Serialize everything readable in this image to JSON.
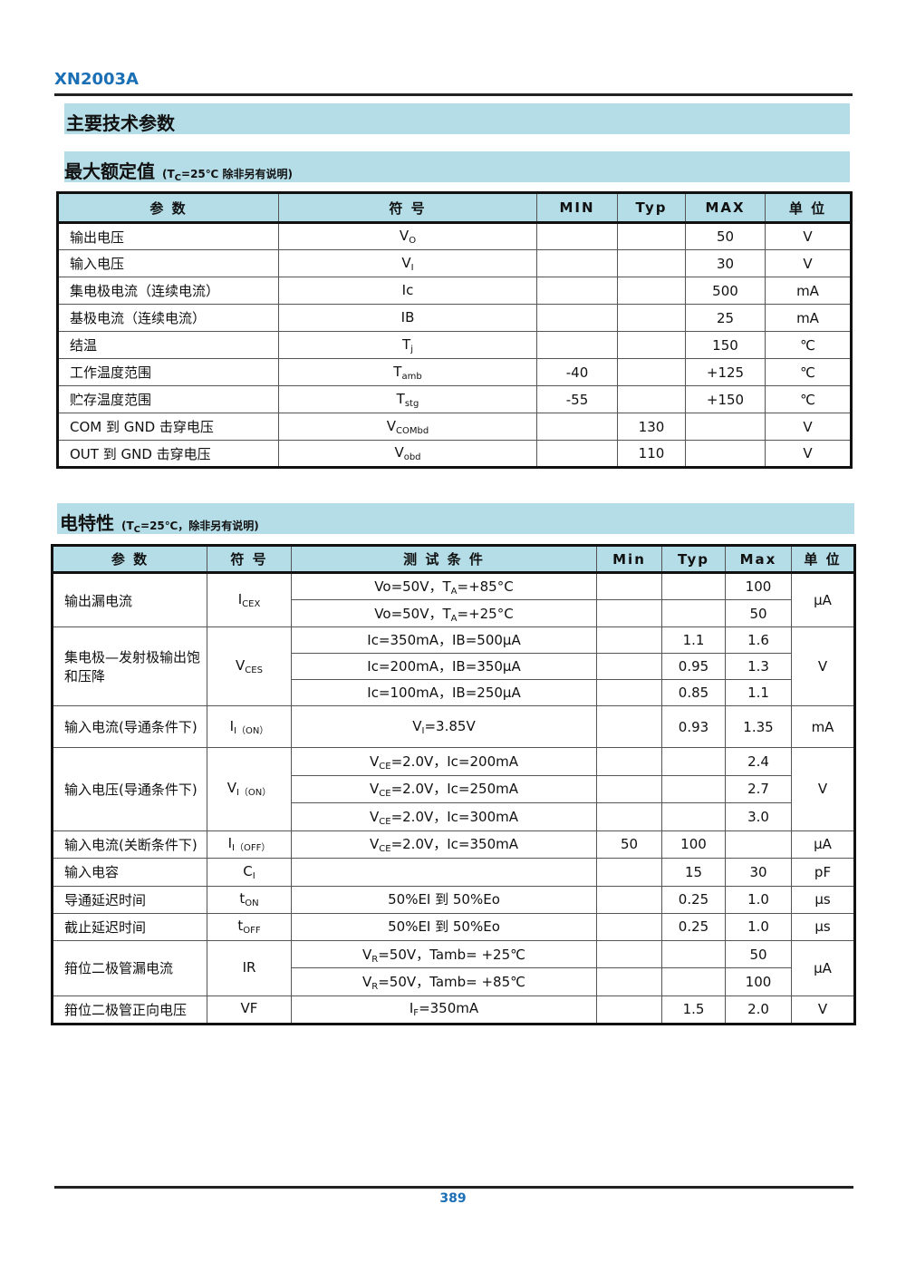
{
  "header": {
    "title": "XN2003A"
  },
  "section_main": "主要技术参数",
  "section_max": {
    "title": "最大额定值",
    "note_pre": "(T",
    "note_sub": "C",
    "note_post": "=25℃  除非另有说明)"
  },
  "table1": {
    "headers": [
      "参  数",
      "符 号",
      "MIN",
      "Typ",
      "MAX",
      "单 位"
    ],
    "rows": [
      {
        "param": "输出电压",
        "sym": "V",
        "sub": "O",
        "min": "",
        "typ": "",
        "max": "50",
        "unit": "V"
      },
      {
        "param": "输入电压",
        "sym": "V",
        "sub": "I",
        "min": "",
        "typ": "",
        "max": "30",
        "unit": "V"
      },
      {
        "param": "集电极电流（连续电流）",
        "sym": "Ic",
        "sub": "",
        "min": "",
        "typ": "",
        "max": "500",
        "unit": "mA"
      },
      {
        "param": "基极电流（连续电流）",
        "sym": "IB",
        "sub": "",
        "min": "",
        "typ": "",
        "max": "25",
        "unit": "mA"
      },
      {
        "param": "结温",
        "sym": "T",
        "sub": "j",
        "min": "",
        "typ": "",
        "max": "150",
        "unit": "℃"
      },
      {
        "param": "工作温度范围",
        "sym": "T",
        "sub": "amb",
        "min": "-40",
        "typ": "",
        "max": "+125",
        "unit": "℃"
      },
      {
        "param": "贮存温度范围",
        "sym": "T",
        "sub": "stg",
        "min": "-55",
        "typ": "",
        "max": "+150",
        "unit": "℃"
      },
      {
        "param": "COM 到 GND 击穿电压",
        "sym": "V",
        "sub": "COMbd",
        "min": "",
        "typ": "130",
        "max": "",
        "unit": "V"
      },
      {
        "param": "OUT 到 GND 击穿电压",
        "sym": "V",
        "sub": "obd",
        "min": "",
        "typ": "110",
        "max": "",
        "unit": "V"
      }
    ]
  },
  "section_elec": {
    "title": "电特性",
    "note_pre": "(T",
    "note_sub": "C",
    "note_post": "=25℃，除非另有说明)"
  },
  "table2": {
    "headers": [
      "参  数",
      "符 号",
      "测 试 条 件",
      "Min",
      "Typ",
      "Max",
      "单 位"
    ],
    "groups": [
      {
        "param": "输出漏电流",
        "sym": "I",
        "sub": "CEX",
        "unit": "μA",
        "h": 30,
        "lines": [
          {
            "pre": "Vo=50V，T",
            "sub": "A",
            "post": "=+85°C",
            "min": "",
            "typ": "",
            "max": "100"
          },
          {
            "pre": "Vo=50V，T",
            "sub": "A",
            "post": "=+25°C",
            "min": "",
            "typ": "",
            "max": "50"
          }
        ]
      },
      {
        "param": "集电极—发射极输出饱和压降",
        "sym": "V",
        "sub": "CES",
        "unit": "V",
        "h": 29,
        "lines": [
          {
            "pre": "Ic=350mA，IB=500μA",
            "sub": "",
            "post": "",
            "min": "",
            "typ": "1.1",
            "max": "1.6"
          },
          {
            "pre": "Ic=200mA，IB=350μA",
            "sub": "",
            "post": "",
            "min": "",
            "typ": "0.95",
            "max": "1.3"
          },
          {
            "pre": "Ic=100mA，IB=250μA",
            "sub": "",
            "post": "",
            "min": "",
            "typ": "0.85",
            "max": "1.1"
          }
        ]
      },
      {
        "param": "输入电流(导通条件下)",
        "sym": "I",
        "sub": "I（ON）",
        "unit": "mA",
        "h": 46,
        "lines": [
          {
            "pre": "V",
            "sub": "I",
            "post": "=3.85V",
            "min": "",
            "typ": "0.93",
            "max": "1.35"
          }
        ]
      },
      {
        "param": "输入电压(导通条件下)",
        "sym": "V",
        "sub": "I（ON）",
        "unit": "V",
        "h": 30.6,
        "lines": [
          {
            "pre": "V",
            "sub": "CE",
            "post": "=2.0V，Ic=200mA",
            "min": "",
            "typ": "",
            "max": "2.4"
          },
          {
            "pre": "V",
            "sub": "CE",
            "post": "=2.0V，Ic=250mA",
            "min": "",
            "typ": "",
            "max": "2.7"
          },
          {
            "pre": "V",
            "sub": "CE",
            "post": "=2.0V，Ic=300mA",
            "min": "",
            "typ": "",
            "max": "3.0"
          }
        ]
      },
      {
        "param": "输入电流(关断条件下)",
        "sym": "I",
        "sub": "I（OFF）",
        "unit": "μA",
        "h": 30,
        "lines": [
          {
            "pre": "V",
            "sub": "CE",
            "post": "=2.0V，Ic=350mA",
            "min": "50",
            "typ": "100",
            "max": ""
          }
        ]
      },
      {
        "param": "输入电容",
        "sym": "C",
        "sub": "I",
        "unit": "pF",
        "h": 31,
        "lines": [
          {
            "pre": "",
            "sub": "",
            "post": "",
            "min": "",
            "typ": "15",
            "max": "30"
          }
        ]
      },
      {
        "param": "导通延迟时间",
        "sym": "t",
        "sub": "ON",
        "unit": "μs",
        "h": 30,
        "lines": [
          {
            "pre": "50%EI  到  50%Eo",
            "sub": "",
            "post": "",
            "min": "",
            "typ": "0.25",
            "max": "1.0"
          }
        ]
      },
      {
        "param": "截止延迟时间",
        "sym": "t",
        "sub": "OFF",
        "unit": "μs",
        "h": 30,
        "lines": [
          {
            "pre": "50%EI  到  50%Eo",
            "sub": "",
            "post": "",
            "min": "",
            "typ": "0.25",
            "max": "1.0"
          }
        ]
      },
      {
        "param": "箝位二极管漏电流",
        "sym": "IR",
        "sub": "",
        "unit": "μA",
        "h": 30.5,
        "lines": [
          {
            "pre": "V",
            "sub": "R",
            "post": "=50V，Tamb= +25℃",
            "min": "",
            "typ": "",
            "max": "50"
          },
          {
            "pre": "V",
            "sub": "R",
            "post": "=50V，Tamb= +85℃",
            "min": "",
            "typ": "",
            "max": "100"
          }
        ]
      },
      {
        "param": "箝位二极管正向电压",
        "sym": "VF",
        "sub": "",
        "unit": "V",
        "h": 31,
        "lines": [
          {
            "pre": "I",
            "sub": "F",
            "post": "=350mA",
            "min": "",
            "typ": "1.5",
            "max": "2.0"
          }
        ]
      }
    ]
  },
  "footer": {
    "page": "389"
  },
  "colors": {
    "accent": "#1a6fb5",
    "band": "#b4dde7"
  }
}
